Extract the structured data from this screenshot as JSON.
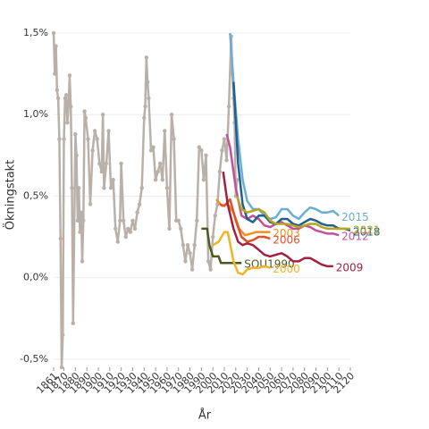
{
  "chart_data": {
    "type": "line",
    "x_label": "År",
    "y_label": "Ökningstakt",
    "xlim": [
      1861,
      2120
    ],
    "ylim": [
      -0.55,
      1.5
    ],
    "xticks": [
      1861,
      1870,
      1880,
      1890,
      1900,
      1910,
      1920,
      1930,
      1940,
      1950,
      1960,
      1970,
      1980,
      1990,
      2000,
      2010,
      2020,
      2030,
      2040,
      2050,
      2060,
      2070,
      2080,
      2090,
      2100,
      2110,
      2120
    ],
    "yticks": [
      {
        "value": -0.5,
        "label": "-0,5%"
      },
      {
        "value": 0,
        "label": "0,0%"
      },
      {
        "value": 0.5,
        "label": "0,5%"
      },
      {
        "value": 1,
        "label": "1,0%"
      },
      {
        "value": 1.5,
        "label": "1,5%"
      }
    ],
    "grid": true,
    "history": {
      "color": "#b9b1a9",
      "x": [
        1861,
        1862,
        1863,
        1864,
        1865,
        1866,
        1867,
        1868,
        1869,
        1870,
        1871,
        1872,
        1873,
        1874,
        1875,
        1876,
        1877,
        1878,
        1880,
        1881,
        1882,
        1883,
        1884,
        1885,
        1886,
        1887,
        1888,
        1889,
        1891,
        1893,
        1895,
        1897,
        1899,
        1901,
        1903,
        1904,
        1905,
        1907,
        1909,
        1911,
        1913,
        1915,
        1917,
        1919,
        1920,
        1922,
        1924,
        1926,
        1928,
        1930,
        1932,
        1934,
        1936,
        1938,
        1940,
        1941,
        1942,
        1943,
        1944,
        1946,
        1948,
        1950,
        1952,
        1954,
        1956,
        1958,
        1960,
        1962,
        1964,
        1966,
        1968,
        1970,
        1972,
        1974,
        1976,
        1978,
        1980,
        1982,
        1984,
        1986,
        1988,
        1990,
        1992,
        1994,
        1996,
        1998,
        2000,
        2002,
        2004,
        2006,
        2008,
        2010,
        2012,
        2014,
        2016,
        2017,
        2018,
        2019,
        2020,
        2021
      ],
      "values": [
        1.5,
        1.25,
        1.42,
        1.15,
        1.1,
        0.85,
        0.24,
        -0.55,
        -0.35,
        0.85,
        1.1,
        1.12,
        0.95,
        1.05,
        1.24,
        1.05,
        0.55,
        -0.28,
        0.88,
        0.75,
        0.35,
        0.55,
        0.28,
        0.4,
        0.1,
        0.35,
        1.02,
        0.98,
        0.85,
        0.45,
        0.78,
        0.9,
        0.85,
        0.7,
        0.65,
        1.0,
        0.55,
        0.7,
        0.9,
        0.55,
        0.6,
        0.3,
        0.22,
        0.35,
        0.7,
        0.35,
        0.25,
        0.3,
        0.28,
        0.35,
        0.3,
        0.4,
        0.45,
        0.55,
        0.98,
        1.05,
        1.35,
        1.2,
        1.1,
        0.78,
        0.8,
        0.6,
        0.65,
        0.7,
        0.6,
        0.9,
        0.55,
        0.3,
        1.0,
        0.85,
        0.35,
        0.35,
        0.3,
        0.2,
        0.1,
        0.2,
        0.15,
        0.05,
        0.2,
        0.35,
        0.8,
        0.78,
        0.6,
        0.75,
        0.1,
        0.05,
        0.25,
        0.38,
        0.45,
        0.65,
        0.78,
        0.85,
        0.72,
        1.05,
        1.48,
        1.25,
        1.1,
        0.95,
        0.5,
        0.6
      ]
    },
    "series": [
      {
        "name": "SOU1990",
        "color": "#4b5a1e",
        "x": [
          1990,
          1995,
          1997,
          2000,
          2005,
          2007,
          2015,
          2025
        ],
        "values": [
          0.3,
          0.3,
          0.2,
          0.13,
          0.13,
          0.09,
          0.09,
          0.09
        ]
      },
      {
        "name": "2000",
        "color": "#f3b325",
        "x": [
          2000,
          2005,
          2010,
          2013,
          2018,
          2022,
          2026,
          2030,
          2035,
          2040,
          2045,
          2050
        ],
        "values": [
          0.2,
          0.22,
          0.28,
          0.28,
          0.1,
          0.03,
          0.02,
          0.05,
          0.06,
          0.06,
          0.07,
          0.06
        ]
      },
      {
        "name": "2003",
        "color": "#f0901e",
        "x": [
          2003,
          2008,
          2013,
          2018,
          2023,
          2028,
          2033,
          2038,
          2043,
          2050
        ],
        "values": [
          0.48,
          0.44,
          0.45,
          0.4,
          0.3,
          0.26,
          0.27,
          0.28,
          0.28,
          0.28
        ]
      },
      {
        "name": "2006",
        "color": "#e0512b",
        "x": [
          2006,
          2010,
          2015,
          2020,
          2025,
          2030,
          2035,
          2040,
          2045,
          2050
        ],
        "values": [
          0.45,
          0.44,
          0.48,
          0.35,
          0.25,
          0.22,
          0.23,
          0.25,
          0.25,
          0.24
        ]
      },
      {
        "name": "2009",
        "color": "#a3203f",
        "x": [
          2009,
          2013,
          2018,
          2022,
          2026,
          2030,
          2035,
          2040,
          2045,
          2050,
          2055,
          2060,
          2065,
          2070,
          2075,
          2080,
          2085,
          2090,
          2095,
          2100,
          2105
        ],
        "values": [
          0.65,
          0.45,
          0.3,
          0.22,
          0.2,
          0.21,
          0.2,
          0.17,
          0.14,
          0.13,
          0.14,
          0.15,
          0.13,
          0.1,
          0.1,
          0.12,
          0.12,
          0.1,
          0.08,
          0.07,
          0.07
        ]
      },
      {
        "name": "2012",
        "color": "#c2509a",
        "x": [
          2012,
          2015,
          2020,
          2025,
          2030,
          2035,
          2040,
          2045,
          2050,
          2055,
          2060,
          2065,
          2070,
          2075,
          2080,
          2085,
          2090,
          2095,
          2100,
          2105,
          2110
        ],
        "values": [
          0.88,
          0.8,
          0.55,
          0.38,
          0.36,
          0.38,
          0.36,
          0.32,
          0.31,
          0.33,
          0.34,
          0.32,
          0.3,
          0.3,
          0.32,
          0.31,
          0.29,
          0.28,
          0.27,
          0.27,
          0.26
        ]
      },
      {
        "name": "2015",
        "color": "#6aaed8",
        "x": [
          2015,
          2018,
          2022,
          2026,
          2030,
          2035,
          2040,
          2045,
          2050,
          2055,
          2060,
          2065,
          2070,
          2075,
          2080,
          2085,
          2090,
          2095,
          2100,
          2105,
          2110
        ],
        "values": [
          1.5,
          1.2,
          0.85,
          0.6,
          0.47,
          0.42,
          0.42,
          0.38,
          0.36,
          0.37,
          0.42,
          0.42,
          0.38,
          0.36,
          0.4,
          0.43,
          0.42,
          0.4,
          0.4,
          0.41,
          0.38
        ]
      },
      {
        "name": "2018",
        "color": "#235f8e",
        "x": [
          2018,
          2022,
          2026,
          2030,
          2035,
          2040,
          2045,
          2050,
          2055,
          2060,
          2065,
          2070,
          2075,
          2080,
          2085,
          2090,
          2095,
          2100,
          2105,
          2110,
          2115,
          2120
        ],
        "values": [
          1.2,
          0.7,
          0.45,
          0.36,
          0.34,
          0.38,
          0.38,
          0.34,
          0.33,
          0.36,
          0.36,
          0.33,
          0.32,
          0.34,
          0.36,
          0.35,
          0.33,
          0.32,
          0.32,
          0.3,
          0.3,
          0.29
        ]
      },
      {
        "name": "2021",
        "color": "#b6a622",
        "x": [
          2021,
          2025,
          2030,
          2035,
          2040,
          2045,
          2050,
          2055,
          2060,
          2065,
          2070,
          2075,
          2080,
          2085,
          2090,
          2095,
          2100,
          2105,
          2110,
          2115,
          2120
        ],
        "values": [
          0.5,
          0.42,
          0.4,
          0.41,
          0.42,
          0.4,
          0.35,
          0.33,
          0.33,
          0.33,
          0.32,
          0.31,
          0.32,
          0.33,
          0.33,
          0.31,
          0.3,
          0.3,
          0.3,
          0.3,
          0.3
        ]
      }
    ]
  }
}
